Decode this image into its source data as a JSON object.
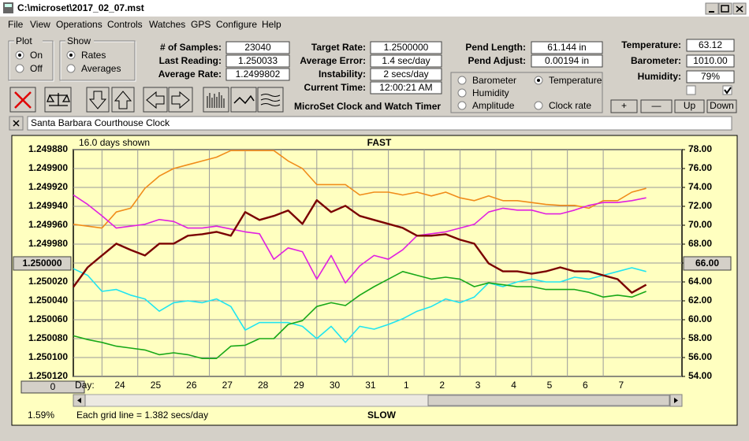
{
  "window": {
    "title": "C:\\microset\\2017_02_07.mst"
  },
  "menu": [
    "File",
    "View",
    "Operations",
    "Controls",
    "Watches",
    "GPS",
    "Configure",
    "Help"
  ],
  "plot_group": {
    "title": "Plot",
    "options": [
      "On",
      "Off"
    ],
    "selected": 0
  },
  "show_group": {
    "title": "Show",
    "options": [
      "Rates",
      "Averages"
    ],
    "selected": 0
  },
  "stats": [
    {
      "label": "# of Samples:",
      "value": "23040"
    },
    {
      "label": "Last Reading:",
      "value": "1.250033"
    },
    {
      "label": "Average Rate:",
      "value": "1.2499802"
    }
  ],
  "timing": [
    {
      "label": "Target Rate:",
      "value": "1.2500000"
    },
    {
      "label": "Average Error:",
      "value": "1.4 sec/day"
    },
    {
      "label": "Instability:",
      "value": "2 secs/day"
    },
    {
      "label": "Current Time:",
      "value": "12:00:21 AM"
    }
  ],
  "caption": "MicroSet Clock and Watch Timer",
  "pendulum": [
    {
      "label": "Pend Length:",
      "value": "61.144 in"
    },
    {
      "label": "Pend Adjust:",
      "value": "0.00194 in"
    }
  ],
  "environment": [
    {
      "label": "Temperature:",
      "value": "63.12"
    },
    {
      "label": "Barometer:",
      "value": "1010.00"
    },
    {
      "label": "Humidity:",
      "value": "79%"
    }
  ],
  "buttons": [
    "+",
    "—",
    "Up",
    "Down"
  ],
  "clock_name": "Santa Barbara Courthouse Clock",
  "controls": {
    "rate_center": "1.250000",
    "y2_center": "66.00",
    "offset": "0",
    "percent": "1.59%"
  },
  "chart_data": {
    "type": "line",
    "title": "FAST",
    "bottom_label": "SLOW",
    "days_shown": "16.0 days shown",
    "grid_note": "Each grid line = 1.382 secs/day",
    "x_label": "Day:",
    "selected_series": 1,
    "grid": true,
    "y_inverted": true,
    "xlim": [
      0,
      17
    ],
    "xticks": [
      {
        "value": 0.8,
        "label": "24"
      },
      {
        "value": 1.8,
        "label": "25"
      },
      {
        "value": 2.8,
        "label": "26"
      },
      {
        "value": 3.8,
        "label": "27"
      },
      {
        "value": 4.8,
        "label": "28"
      },
      {
        "value": 5.8,
        "label": "29"
      },
      {
        "value": 6.8,
        "label": "30"
      },
      {
        "value": 7.8,
        "label": "31"
      },
      {
        "value": 8.8,
        "label": "1"
      },
      {
        "value": 9.8,
        "label": "2"
      },
      {
        "value": 10.8,
        "label": "3"
      },
      {
        "value": 11.8,
        "label": "4"
      },
      {
        "value": 12.8,
        "label": "5"
      },
      {
        "value": 13.8,
        "label": "6"
      },
      {
        "value": 14.8,
        "label": "7"
      }
    ],
    "ylim": [
      1.24988,
      1.25012
    ],
    "yticks": [
      {
        "value": 1.24988,
        "label": "1.249880"
      },
      {
        "value": 1.2499,
        "label": "1.249900"
      },
      {
        "value": 1.24992,
        "label": "1.249920"
      },
      {
        "value": 1.24994,
        "label": "1.249940"
      },
      {
        "value": 1.24996,
        "label": "1.249960"
      },
      {
        "value": 1.24998,
        "label": "1.249980"
      },
      {
        "value": 1.25,
        "label": "1.250000"
      },
      {
        "value": 1.25002,
        "label": "1.250020"
      },
      {
        "value": 1.25004,
        "label": "1.250040"
      },
      {
        "value": 1.25006,
        "label": "1.250060"
      },
      {
        "value": 1.25008,
        "label": "1.250080"
      },
      {
        "value": 1.2501,
        "label": "1.250100"
      },
      {
        "value": 1.25012,
        "label": "1.250120"
      }
    ],
    "y2lim": [
      54,
      78
    ],
    "y2ticks": [
      {
        "value": 78,
        "label": "78.00"
      },
      {
        "value": 76,
        "label": "76.00"
      },
      {
        "value": 74,
        "label": "74.00"
      },
      {
        "value": 72,
        "label": "72.00"
      },
      {
        "value": 70,
        "label": "70.00"
      },
      {
        "value": 68,
        "label": "68.00"
      },
      {
        "value": 66,
        "label": "66.00"
      },
      {
        "value": 64,
        "label": "64.00"
      },
      {
        "value": 62,
        "label": "62.00"
      },
      {
        "value": 60,
        "label": "60.00"
      },
      {
        "value": 58,
        "label": "58.00"
      },
      {
        "value": 56,
        "label": "56.00"
      },
      {
        "value": 54,
        "label": "54.00"
      }
    ],
    "x": [
      0,
      0.4,
      0.8,
      1.2,
      1.6,
      2,
      2.4,
      2.8,
      3.2,
      3.6,
      4,
      4.4,
      4.8,
      5.2,
      5.6,
      6,
      6.4,
      6.8,
      7.2,
      7.6,
      8,
      8.4,
      8.8,
      9.2,
      9.6,
      10,
      10.4,
      10.8,
      11.2,
      11.6,
      12,
      12.4,
      12.8,
      13.2,
      13.6,
      14,
      14.4,
      14.8,
      15.2,
      15.6,
      16
    ],
    "series": [
      {
        "name": "Barometer",
        "color": "#f08c1a",
        "axis": "y2",
        "values": [
          70.1,
          69.9,
          69.7,
          71.4,
          71.8,
          73.9,
          75.2,
          76.0,
          76.4,
          76.8,
          77.2,
          77.9,
          77.9,
          77.9,
          77.9,
          76.8,
          76.0,
          74.3,
          74.3,
          74.3,
          73.2,
          73.5,
          73.5,
          73.2,
          73.5,
          73.1,
          73.5,
          72.9,
          72.6,
          73.1,
          72.6,
          72.6,
          72.4,
          72.2,
          72.1,
          72.1,
          71.8,
          72.6,
          72.6,
          73.5,
          73.9
        ]
      },
      {
        "name": "Temperature",
        "color": "#18a818",
        "axis": "y2",
        "values": [
          58.3,
          57.9,
          57.6,
          57.2,
          57.0,
          56.8,
          56.3,
          56.5,
          56.3,
          55.9,
          55.9,
          57.2,
          57.3,
          58.0,
          58.0,
          59.5,
          59.9,
          61.4,
          61.8,
          61.5,
          62.6,
          63.5,
          64.3,
          65.1,
          64.7,
          64.3,
          64.5,
          64.3,
          63.5,
          63.9,
          63.7,
          63.5,
          63.5,
          63.2,
          63.2,
          63.2,
          62.9,
          62.4,
          62.6,
          62.4,
          63.0
        ]
      },
      {
        "name": "Humidity",
        "color": "#e020e0",
        "axis": "y2",
        "values": [
          73.2,
          72.2,
          71.0,
          69.7,
          69.9,
          70.1,
          70.6,
          70.4,
          69.7,
          69.7,
          69.9,
          69.6,
          69.3,
          69.1,
          66.4,
          67.6,
          67.2,
          64.3,
          66.8,
          63.9,
          65.7,
          66.8,
          66.4,
          67.4,
          68.9,
          69.1,
          69.3,
          69.7,
          70.1,
          71.4,
          71.8,
          71.6,
          71.6,
          71.2,
          71.2,
          71.6,
          72.1,
          72.4,
          72.4,
          72.6,
          72.9
        ]
      },
      {
        "name": "Amplitude",
        "color": "#20e4f0",
        "axis": "y2",
        "values": [
          65.4,
          64.7,
          63.0,
          63.2,
          62.6,
          62.2,
          60.9,
          61.8,
          62.0,
          61.8,
          62.2,
          61.4,
          58.9,
          59.7,
          59.7,
          59.7,
          59.3,
          58.0,
          59.3,
          57.6,
          59.3,
          59.0,
          59.5,
          60.1,
          60.9,
          61.4,
          62.2,
          61.8,
          62.4,
          63.9,
          63.5,
          64.0,
          64.3,
          64.0,
          64.0,
          64.5,
          64.3,
          64.7,
          65.1,
          65.5,
          65.1
        ]
      },
      {
        "name": "Clock rate",
        "color": "#7a0000",
        "values": [
          1.2500255,
          1.2500046,
          1.249992,
          1.2499795,
          1.2499862,
          1.249992,
          1.2499795,
          1.2499795,
          1.2499711,
          1.2499695,
          1.249967,
          1.2499711,
          1.2499461,
          1.2499544,
          1.2499502,
          1.2499444,
          1.2499586,
          1.2499335,
          1.2499461,
          1.2499394,
          1.2499502,
          1.2499544,
          1.2499586,
          1.2499628,
          1.2499711,
          1.2499711,
          1.2499695,
          1.2499753,
          1.2499795,
          1.2500004,
          1.2500088,
          1.2500088,
          1.2500113,
          1.2500088,
          1.2500046,
          1.2500088,
          1.2500088,
          1.250013,
          1.2500171,
          1.2500314,
          1.250023
        ]
      }
    ]
  }
}
